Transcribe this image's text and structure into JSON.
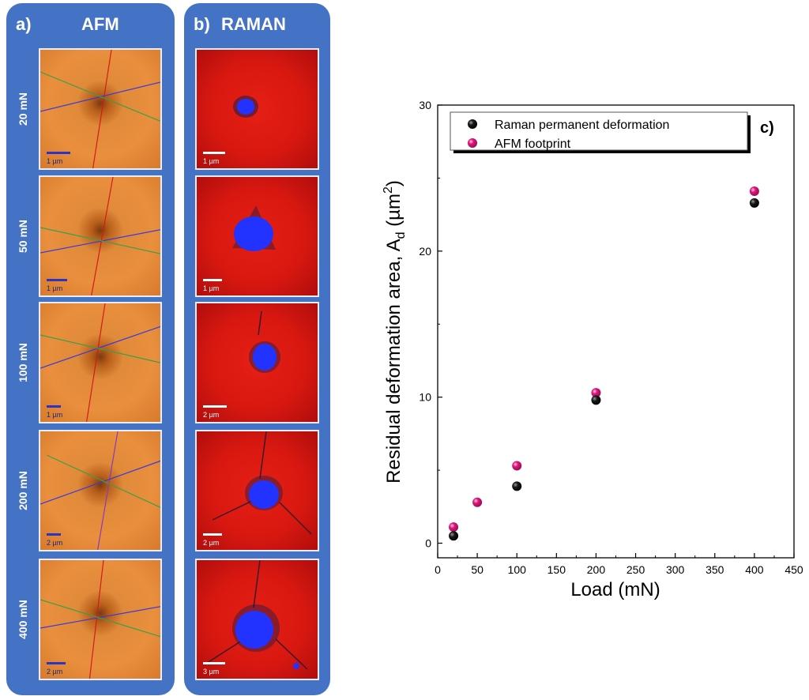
{
  "panel_a": {
    "tag": "a)",
    "title": "AFM",
    "tiles": [
      {
        "load": "20 mN",
        "scale": "1 µm"
      },
      {
        "load": "50 mN",
        "scale": "1 µm"
      },
      {
        "load": "100 mN",
        "scale": "1 µm"
      },
      {
        "load": "200 mN",
        "scale": "2 µm"
      },
      {
        "load": "400 mN",
        "scale": "2 µm"
      }
    ]
  },
  "panel_b": {
    "tag": "b)",
    "title": "RAMAN",
    "tiles": [
      {
        "scale": "1 µm"
      },
      {
        "scale": "1 µm"
      },
      {
        "scale": "2 µm"
      },
      {
        "scale": "2 µm"
      },
      {
        "scale": "3 µm"
      }
    ]
  },
  "colors": {
    "panel_bg": "#4472c4",
    "raman_marker": "#000000",
    "afm_marker": "#e0157a"
  },
  "chart_data": {
    "type": "scatter",
    "panel_label": "c)",
    "xlabel": "Load (mN)",
    "ylabel": "Residual deformation area, A_d (µm²)",
    "ylabel_main": "Residual deformation area, A",
    "ylabel_sub": "d",
    "ylabel_unit_open": " (µm",
    "ylabel_sup": "2",
    "ylabel_unit_close": ")",
    "xlim": [
      0,
      450
    ],
    "ylim": [
      -1,
      30
    ],
    "xticks": [
      0,
      50,
      100,
      150,
      200,
      250,
      300,
      350,
      400,
      450
    ],
    "yticks": [
      0,
      10,
      20,
      30
    ],
    "legend_position": "top-left",
    "series": [
      {
        "name": "Raman permanent deformation",
        "color": "#000000",
        "x": [
          20,
          100,
          200,
          400
        ],
        "y": [
          0.5,
          3.9,
          9.8,
          23.3
        ]
      },
      {
        "name": "AFM footprint",
        "color": "#e0157a",
        "x": [
          20,
          50,
          100,
          200,
          400
        ],
        "y": [
          1.1,
          2.8,
          5.3,
          10.3,
          24.1
        ]
      }
    ]
  }
}
